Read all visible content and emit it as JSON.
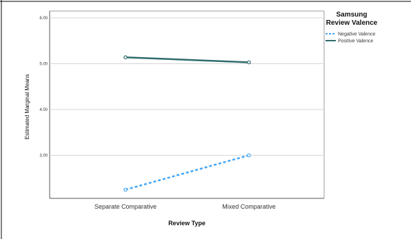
{
  "chart_data": {
    "type": "line",
    "categories": [
      "Separate Comparative",
      "Mixed Comparative"
    ],
    "series": [
      {
        "name": "Negative Valence",
        "values": [
          2.25,
          3.0
        ],
        "color": "#42a5f5",
        "dash": "dashed"
      },
      {
        "name": "Positive Valence",
        "values": [
          5.14,
          5.03
        ],
        "color": "#2e6b6b",
        "dash": "solid"
      }
    ],
    "xlabel": "Review Type",
    "ylabel": "Estimated Marginal Means",
    "ylim": [
      2.0,
      6.0
    ],
    "yticks": [
      "6.00",
      "5.00",
      "4.00",
      "3.00"
    ],
    "ytick_values": [
      6,
      5,
      4,
      3
    ],
    "grid": true,
    "legend": {
      "title_lines": [
        "Samsung",
        "Review Valence"
      ],
      "placement": "top-right"
    }
  }
}
